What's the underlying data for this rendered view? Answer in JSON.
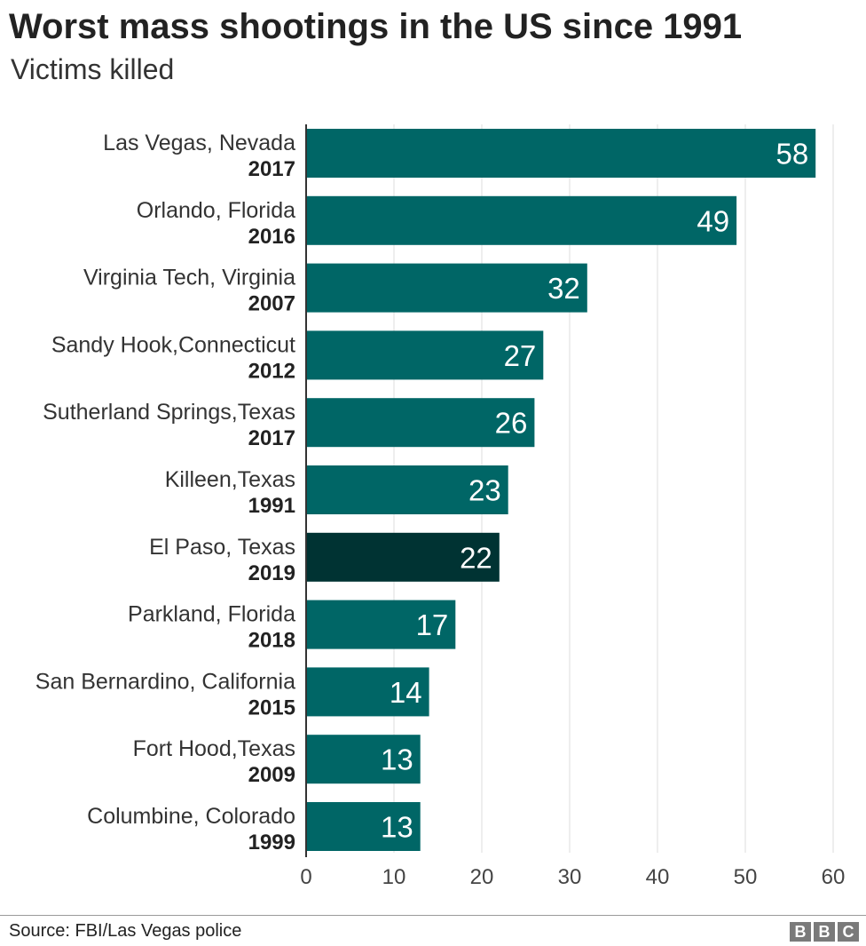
{
  "title": "Worst mass shootings in the US since 1991",
  "subtitle": "Victims killed",
  "source": "Source: FBI/Las Vegas police",
  "logo": {
    "letters": [
      "B",
      "B",
      "C"
    ]
  },
  "colors": {
    "bar": "#006666",
    "highlight": "#003333",
    "grid": "#dddddd",
    "axis": "#333333",
    "value_text": "#ffffff"
  },
  "chart_data": {
    "type": "bar",
    "orientation": "horizontal",
    "title": "Worst mass shootings in the US since 1991",
    "subtitle": "Victims killed",
    "categories": [
      "Las Vegas, Nevada",
      "Orlando, Florida",
      "Virginia Tech, Virginia",
      "Sandy Hook,Connecticut",
      "Sutherland Springs,Texas",
      "Killeen,Texas",
      "El Paso, Texas",
      "Parkland, Florida",
      "San Bernardino, California",
      "Fort Hood,Texas",
      "Columbine, Colorado"
    ],
    "years": [
      "2017",
      "2016",
      "2007",
      "2012",
      "2017",
      "1991",
      "2019",
      "2018",
      "2015",
      "2009",
      "1999"
    ],
    "values": [
      58,
      49,
      32,
      27,
      26,
      23,
      22,
      17,
      14,
      13,
      13
    ],
    "highlight_index": 6,
    "xlim": [
      0,
      60
    ],
    "xticks": [
      0,
      10,
      20,
      30,
      40,
      50,
      60
    ],
    "grid": true,
    "legend": "none"
  }
}
